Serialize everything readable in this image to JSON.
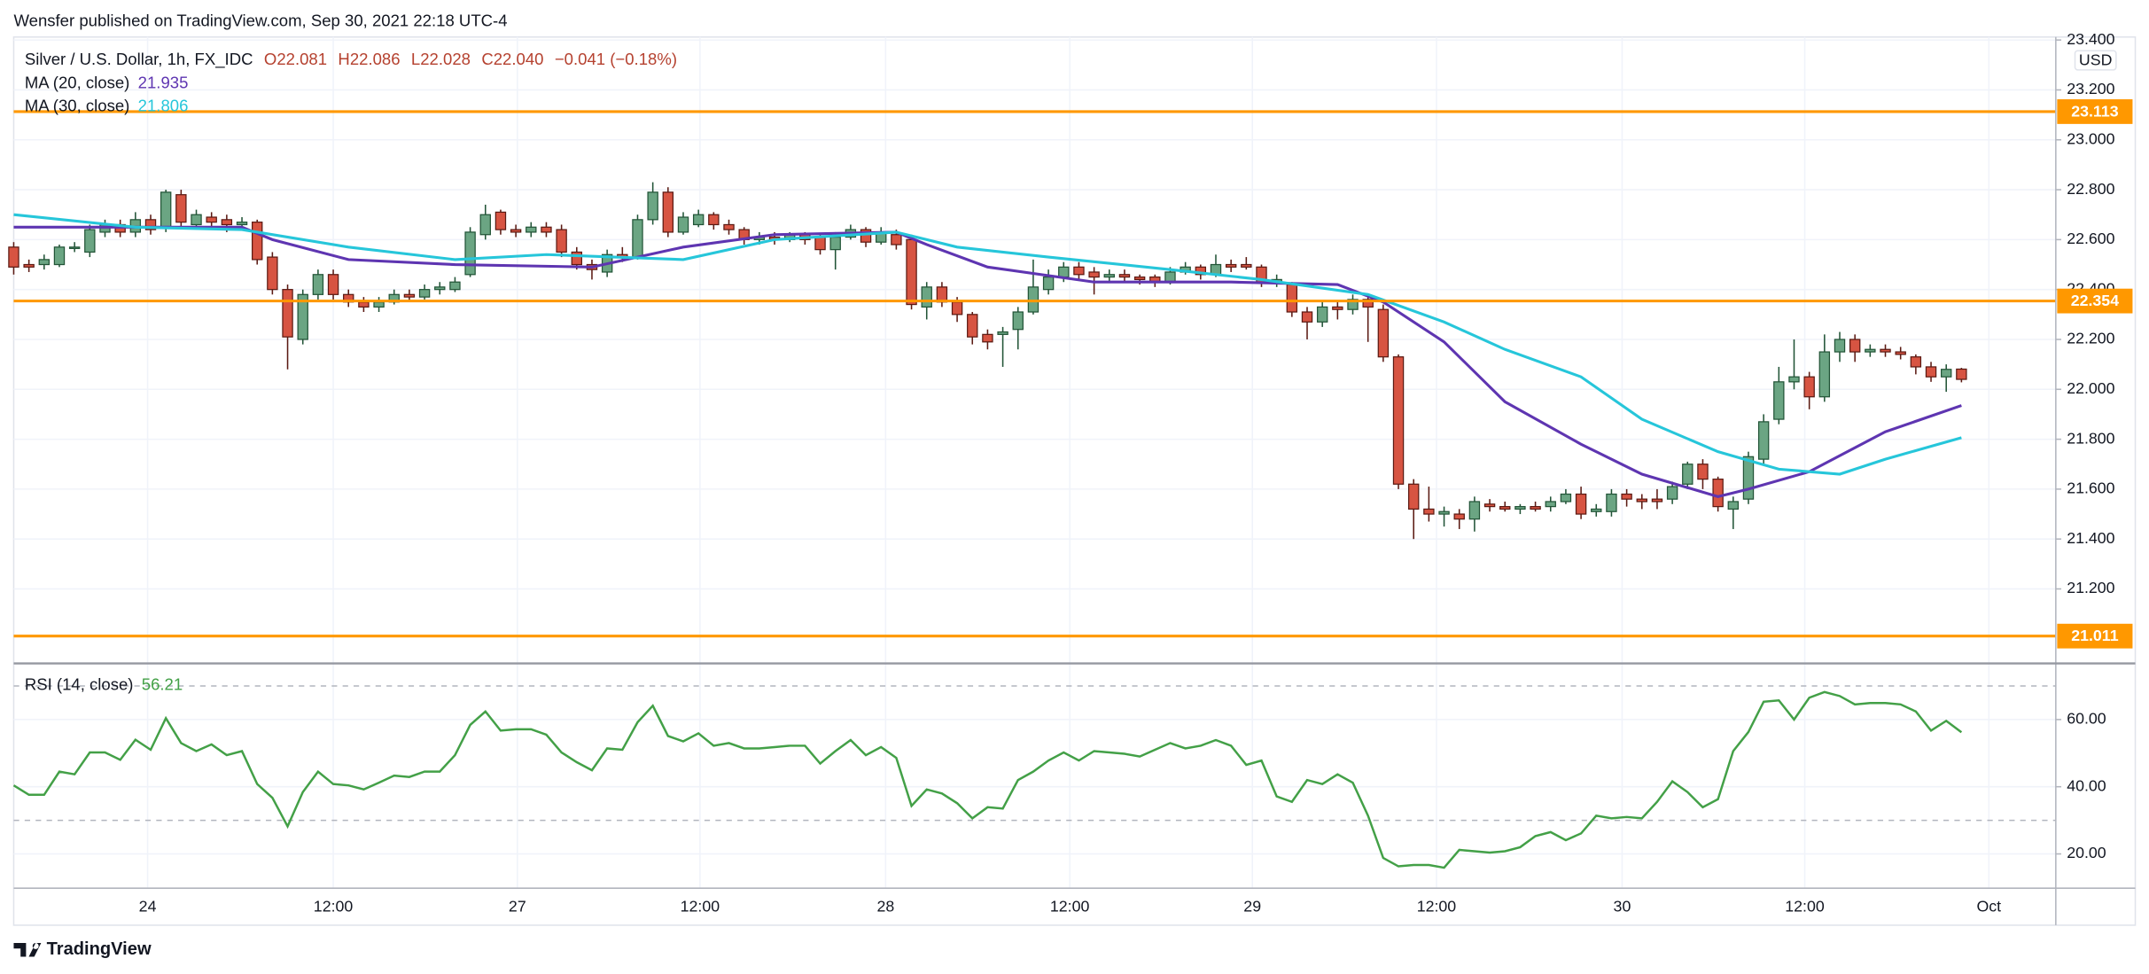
{
  "header": "Wensfer published on TradingView.com, Sep 30, 2021 22:18 UTC-4",
  "brand": "TradingView",
  "chart_data": {
    "type": "candlestick",
    "title": "Silver / U.S. Dollar, 1h, FX_IDC",
    "ohlc_labels": [
      "O22.081",
      "H22.086",
      "L22.028",
      "C22.040",
      "−0.041 (−0.18%)"
    ],
    "currency": "USD",
    "up_color": "#6ba583",
    "down_color": "#d75442",
    "candles": [
      [
        22.57,
        22.59,
        22.46,
        22.49
      ],
      [
        22.5,
        22.52,
        22.47,
        22.49
      ],
      [
        22.5,
        22.54,
        22.48,
        22.52
      ],
      [
        22.5,
        22.58,
        22.49,
        22.57
      ],
      [
        22.57,
        22.59,
        22.55,
        22.57
      ],
      [
        22.55,
        22.66,
        22.53,
        22.64
      ],
      [
        22.63,
        22.68,
        22.61,
        22.66
      ],
      [
        22.66,
        22.68,
        22.61,
        22.63
      ],
      [
        22.63,
        22.71,
        22.61,
        22.68
      ],
      [
        22.68,
        22.7,
        22.62,
        22.64
      ],
      [
        22.65,
        22.8,
        22.63,
        22.79
      ],
      [
        22.78,
        22.8,
        22.65,
        22.67
      ],
      [
        22.66,
        22.72,
        22.64,
        22.7
      ],
      [
        22.69,
        22.71,
        22.65,
        22.67
      ],
      [
        22.68,
        22.7,
        22.63,
        22.66
      ],
      [
        22.66,
        22.69,
        22.64,
        22.67
      ],
      [
        22.67,
        22.68,
        22.5,
        22.52
      ],
      [
        22.53,
        22.55,
        22.38,
        22.4
      ],
      [
        22.4,
        22.42,
        22.08,
        22.21
      ],
      [
        22.2,
        22.4,
        22.18,
        22.38
      ],
      [
        22.38,
        22.48,
        22.36,
        22.46
      ],
      [
        22.46,
        22.48,
        22.36,
        22.38
      ],
      [
        22.38,
        22.4,
        22.33,
        22.35
      ],
      [
        22.35,
        22.37,
        22.31,
        22.33
      ],
      [
        22.33,
        22.37,
        22.31,
        22.35
      ],
      [
        22.35,
        22.4,
        22.34,
        22.38
      ],
      [
        22.38,
        22.4,
        22.35,
        22.37
      ],
      [
        22.37,
        22.42,
        22.36,
        22.4
      ],
      [
        22.4,
        22.43,
        22.38,
        22.41
      ],
      [
        22.4,
        22.45,
        22.39,
        22.43
      ],
      [
        22.46,
        22.65,
        22.45,
        22.63
      ],
      [
        22.62,
        22.74,
        22.6,
        22.7
      ],
      [
        22.71,
        22.72,
        22.62,
        22.64
      ],
      [
        22.64,
        22.66,
        22.61,
        22.63
      ],
      [
        22.63,
        22.67,
        22.61,
        22.65
      ],
      [
        22.65,
        22.67,
        22.61,
        22.63
      ],
      [
        22.64,
        22.66,
        22.53,
        22.55
      ],
      [
        22.55,
        22.57,
        22.48,
        22.5
      ],
      [
        22.5,
        22.52,
        22.44,
        22.48
      ],
      [
        22.47,
        22.56,
        22.45,
        22.54
      ],
      [
        22.54,
        22.57,
        22.51,
        22.53
      ],
      [
        22.53,
        22.7,
        22.52,
        22.68
      ],
      [
        22.68,
        22.83,
        22.66,
        22.79
      ],
      [
        22.79,
        22.81,
        22.61,
        22.63
      ],
      [
        22.63,
        22.71,
        22.62,
        22.69
      ],
      [
        22.66,
        22.72,
        22.65,
        22.7
      ],
      [
        22.7,
        22.71,
        22.64,
        22.66
      ],
      [
        22.66,
        22.68,
        22.62,
        22.64
      ],
      [
        22.64,
        22.65,
        22.58,
        22.6
      ],
      [
        22.6,
        22.63,
        22.58,
        22.61
      ],
      [
        22.61,
        22.63,
        22.58,
        22.6
      ],
      [
        22.6,
        22.63,
        22.59,
        22.62
      ],
      [
        22.62,
        22.63,
        22.58,
        22.6
      ],
      [
        22.61,
        22.62,
        22.54,
        22.56
      ],
      [
        22.56,
        22.63,
        22.48,
        22.61
      ],
      [
        22.61,
        22.66,
        22.6,
        22.64
      ],
      [
        22.64,
        22.65,
        22.57,
        22.59
      ],
      [
        22.59,
        22.65,
        22.58,
        22.63
      ],
      [
        22.62,
        22.64,
        22.56,
        22.58
      ],
      [
        22.6,
        22.62,
        22.32,
        22.34
      ],
      [
        22.33,
        22.43,
        22.28,
        22.41
      ],
      [
        22.41,
        22.43,
        22.33,
        22.35
      ],
      [
        22.35,
        22.37,
        22.27,
        22.3
      ],
      [
        22.3,
        22.31,
        22.18,
        22.21
      ],
      [
        22.22,
        22.24,
        22.16,
        22.19
      ],
      [
        22.22,
        22.25,
        22.09,
        22.23
      ],
      [
        22.24,
        22.33,
        22.16,
        22.31
      ],
      [
        22.31,
        22.52,
        22.3,
        22.41
      ],
      [
        22.4,
        22.48,
        22.38,
        22.45
      ],
      [
        22.45,
        22.51,
        22.43,
        22.49
      ],
      [
        22.49,
        22.51,
        22.44,
        22.46
      ],
      [
        22.47,
        22.49,
        22.38,
        22.45
      ],
      [
        22.45,
        22.48,
        22.43,
        22.46
      ],
      [
        22.46,
        22.48,
        22.43,
        22.45
      ],
      [
        22.45,
        22.46,
        22.42,
        22.44
      ],
      [
        22.45,
        22.46,
        22.41,
        22.43
      ],
      [
        22.43,
        22.49,
        22.42,
        22.47
      ],
      [
        22.47,
        22.51,
        22.46,
        22.49
      ],
      [
        22.49,
        22.5,
        22.44,
        22.46
      ],
      [
        22.46,
        22.54,
        22.45,
        22.5
      ],
      [
        22.5,
        22.52,
        22.47,
        22.49
      ],
      [
        22.5,
        22.53,
        22.48,
        22.49
      ],
      [
        22.49,
        22.5,
        22.41,
        22.43
      ],
      [
        22.43,
        22.46,
        22.41,
        22.44
      ],
      [
        22.42,
        22.43,
        22.29,
        22.31
      ],
      [
        22.31,
        22.33,
        22.2,
        22.27
      ],
      [
        22.27,
        22.35,
        22.25,
        22.33
      ],
      [
        22.33,
        22.35,
        22.28,
        22.32
      ],
      [
        22.32,
        22.38,
        22.3,
        22.36
      ],
      [
        22.36,
        22.37,
        22.19,
        22.33
      ],
      [
        22.32,
        22.34,
        22.11,
        22.13
      ],
      [
        22.13,
        22.14,
        21.6,
        21.62
      ],
      [
        21.62,
        21.64,
        21.4,
        21.52
      ],
      [
        21.52,
        21.61,
        21.47,
        21.5
      ],
      [
        21.5,
        21.53,
        21.45,
        21.51
      ],
      [
        21.5,
        21.52,
        21.44,
        21.48
      ],
      [
        21.48,
        21.57,
        21.43,
        21.55
      ],
      [
        21.54,
        21.56,
        21.51,
        21.53
      ],
      [
        21.53,
        21.55,
        21.51,
        21.52
      ],
      [
        21.52,
        21.54,
        21.5,
        21.53
      ],
      [
        21.53,
        21.55,
        21.51,
        21.52
      ],
      [
        21.53,
        21.57,
        21.51,
        21.55
      ],
      [
        21.55,
        21.6,
        21.54,
        21.58
      ],
      [
        21.58,
        21.61,
        21.48,
        21.5
      ],
      [
        21.51,
        21.54,
        21.49,
        21.52
      ],
      [
        21.51,
        21.6,
        21.49,
        21.58
      ],
      [
        21.58,
        21.6,
        21.53,
        21.56
      ],
      [
        21.56,
        21.58,
        21.52,
        21.55
      ],
      [
        21.56,
        21.6,
        21.52,
        21.55
      ],
      [
        21.56,
        21.63,
        21.54,
        21.61
      ],
      [
        21.62,
        21.71,
        21.6,
        21.7
      ],
      [
        21.7,
        21.72,
        21.6,
        21.64
      ],
      [
        21.64,
        21.65,
        21.51,
        21.53
      ],
      [
        21.52,
        21.57,
        21.44,
        21.55
      ],
      [
        21.56,
        21.75,
        21.54,
        21.73
      ],
      [
        21.72,
        21.9,
        21.7,
        21.87
      ],
      [
        21.88,
        22.09,
        21.86,
        22.03
      ],
      [
        22.03,
        22.2,
        22.0,
        22.05
      ],
      [
        22.05,
        22.07,
        21.92,
        21.97
      ],
      [
        21.97,
        22.22,
        21.95,
        22.15
      ],
      [
        22.15,
        22.23,
        22.11,
        22.2
      ],
      [
        22.2,
        22.22,
        22.11,
        22.15
      ],
      [
        22.15,
        22.18,
        22.13,
        22.16
      ],
      [
        22.16,
        22.18,
        22.13,
        22.15
      ],
      [
        22.15,
        22.17,
        22.12,
        22.14
      ],
      [
        22.13,
        22.14,
        22.06,
        22.09
      ],
      [
        22.09,
        22.11,
        22.03,
        22.05
      ],
      [
        22.05,
        22.1,
        21.99,
        22.08
      ],
      [
        22.081,
        22.086,
        22.028,
        22.04
      ]
    ],
    "series": [
      {
        "name": "MA (20, close)",
        "color": "#5e35b1",
        "last": 21.935,
        "x": [
          0,
          8,
          15,
          17,
          22,
          29,
          38,
          44,
          50,
          58,
          60,
          64,
          71,
          80,
          87,
          90,
          94,
          98,
          103,
          107,
          112,
          114,
          118,
          123,
          128
        ],
        "values": [
          22.65,
          22.65,
          22.65,
          22.6,
          22.52,
          22.5,
          22.49,
          22.57,
          22.62,
          22.63,
          22.58,
          22.49,
          22.43,
          22.43,
          22.42,
          22.35,
          22.19,
          21.95,
          21.78,
          21.66,
          21.57,
          21.6,
          21.67,
          21.83,
          21.935
        ]
      },
      {
        "name": "MA (30, close)",
        "color": "#26c6da",
        "last": 21.806,
        "x": [
          0,
          8,
          15,
          22,
          29,
          35,
          44,
          50,
          58,
          62,
          68,
          76,
          82,
          89,
          94,
          98,
          103,
          107,
          112,
          116,
          120,
          123,
          128
        ],
        "values": [
          22.7,
          22.65,
          22.64,
          22.57,
          22.52,
          22.54,
          22.52,
          22.6,
          22.63,
          22.57,
          22.53,
          22.48,
          22.44,
          22.38,
          22.27,
          22.16,
          22.05,
          21.88,
          21.75,
          21.68,
          21.66,
          21.72,
          21.806
        ]
      }
    ],
    "xlim": [
      0,
      134.2
    ],
    "xticks": [
      {
        "value": 8.8,
        "label": "24"
      },
      {
        "value": 21,
        "label": "12:00"
      },
      {
        "value": 33.1,
        "label": "27"
      },
      {
        "value": 45.1,
        "label": "12:00"
      },
      {
        "value": 57.3,
        "label": "28"
      },
      {
        "value": 69.4,
        "label": "12:00"
      },
      {
        "value": 81.4,
        "label": "29"
      },
      {
        "value": 93.5,
        "label": "12:00"
      },
      {
        "value": 105.7,
        "label": "30"
      },
      {
        "value": 117.7,
        "label": "12:00"
      },
      {
        "value": 129.8,
        "label": "Oct"
      }
    ],
    "ylim": [
      20.907,
      23.412
    ],
    "yticks": [
      {
        "value": 21.2,
        "label": "21.200"
      },
      {
        "value": 21.4,
        "label": "21.400"
      },
      {
        "value": 21.6,
        "label": "21.600"
      },
      {
        "value": 21.8,
        "label": "21.800"
      },
      {
        "value": 22,
        "label": "22.000"
      },
      {
        "value": 22.2,
        "label": "22.200"
      },
      {
        "value": 22.4,
        "label": "22.400"
      },
      {
        "value": 22.6,
        "label": "22.600"
      },
      {
        "value": 22.8,
        "label": "22.800"
      },
      {
        "value": 23,
        "label": "23.000"
      },
      {
        "value": 23.2,
        "label": "23.200"
      },
      {
        "value": 23.4,
        "label": "23.400"
      }
    ],
    "hlines": [
      23.113,
      22.354,
      21.011
    ],
    "hline_color": "#ff9800",
    "grid": true,
    "rsi": {
      "name": "RSI (14, close)",
      "color": "#43a047",
      "last": 56.21,
      "values": [
        40.4,
        37.6,
        37.6,
        44.5,
        43.7,
        50.2,
        50.2,
        48,
        54,
        51,
        60.4,
        53,
        50.6,
        52.6,
        49.4,
        50.6,
        40.8,
        36.7,
        28.2,
        38.4,
        44.5,
        40.8,
        40.4,
        39.2,
        41.2,
        43.3,
        42.9,
        44.5,
        44.5,
        49.4,
        58.4,
        62.4,
        56.7,
        57.1,
        57.1,
        55.5,
        50.2,
        47.3,
        44.9,
        51.4,
        51,
        59.2,
        64.1,
        55.1,
        53.5,
        55.9,
        52.2,
        53,
        51.4,
        51.4,
        51.8,
        52.2,
        52.2,
        46.9,
        50.6,
        53.9,
        49.4,
        51.8,
        48.6,
        34.3,
        39.2,
        38,
        35.1,
        30.6,
        33.9,
        33.5,
        42,
        44.5,
        47.8,
        50.2,
        47.8,
        50.6,
        50.2,
        49.8,
        49,
        51,
        53,
        51.4,
        52.2,
        53.9,
        52.2,
        46.5,
        47.8,
        37.1,
        35.5,
        42,
        40.8,
        43.7,
        41.2,
        31.4,
        18.8,
        16.3,
        16.7,
        16.7,
        15.9,
        21.2,
        20.8,
        20.4,
        20.8,
        22,
        25.3,
        26.5,
        24.1,
        26.1,
        31.4,
        30.6,
        31,
        30.6,
        35.5,
        41.6,
        38.4,
        33.9,
        36.3,
        50.6,
        56.3,
        65.3,
        65.7,
        60,
        66.5,
        68.2,
        67.0,
        64.5,
        64.9,
        64.9,
        64.5,
        62.4,
        56.7,
        59.6,
        56.21
      ],
      "ylim": [
        9.8,
        76.3
      ],
      "yticks": [
        {
          "value": 20,
          "label": "20.00"
        },
        {
          "value": 40,
          "label": "40.00"
        },
        {
          "value": 60,
          "label": "60.00"
        }
      ],
      "bands": [
        30,
        70
      ]
    }
  }
}
